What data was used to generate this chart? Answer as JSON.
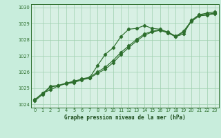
{
  "title": "Graphe pression niveau de la mer (hPa)",
  "bg_color": "#c8eddc",
  "plot_bg_color": "#d8f0e4",
  "line_color": "#2d6e2d",
  "grid_color": "#9ecfae",
  "xlabel_color": "#1a4a1a",
  "ylim": [
    1023.8,
    1030.2
  ],
  "xlim": [
    -0.5,
    23.5
  ],
  "yticks": [
    1024,
    1025,
    1026,
    1027,
    1028,
    1029,
    1030
  ],
  "xticks": [
    0,
    1,
    2,
    3,
    4,
    5,
    6,
    7,
    8,
    9,
    10,
    11,
    12,
    13,
    14,
    15,
    16,
    17,
    18,
    19,
    20,
    21,
    22,
    23
  ],
  "series1": [
    1024.3,
    1024.7,
    1024.9,
    1025.15,
    1025.3,
    1025.45,
    1025.55,
    1025.65,
    1026.4,
    1027.1,
    1027.5,
    1028.2,
    1028.65,
    1028.7,
    1028.88,
    1028.7,
    1028.65,
    1028.45,
    1028.2,
    1028.35,
    1029.2,
    1029.55,
    1029.65,
    1029.72
  ],
  "series2": [
    1024.28,
    1024.68,
    1025.12,
    1025.18,
    1025.32,
    1025.38,
    1025.58,
    1025.68,
    1026.0,
    1026.3,
    1026.72,
    1027.22,
    1027.62,
    1028.02,
    1028.36,
    1028.52,
    1028.62,
    1028.48,
    1028.22,
    1028.52,
    1029.18,
    1029.52,
    1029.58,
    1029.65
  ],
  "series3": [
    1024.22,
    1024.62,
    1025.08,
    1025.15,
    1025.28,
    1025.35,
    1025.52,
    1025.62,
    1025.92,
    1026.18,
    1026.58,
    1027.08,
    1027.52,
    1027.92,
    1028.28,
    1028.48,
    1028.58,
    1028.42,
    1028.18,
    1028.48,
    1029.12,
    1029.48,
    1029.52,
    1029.6
  ]
}
